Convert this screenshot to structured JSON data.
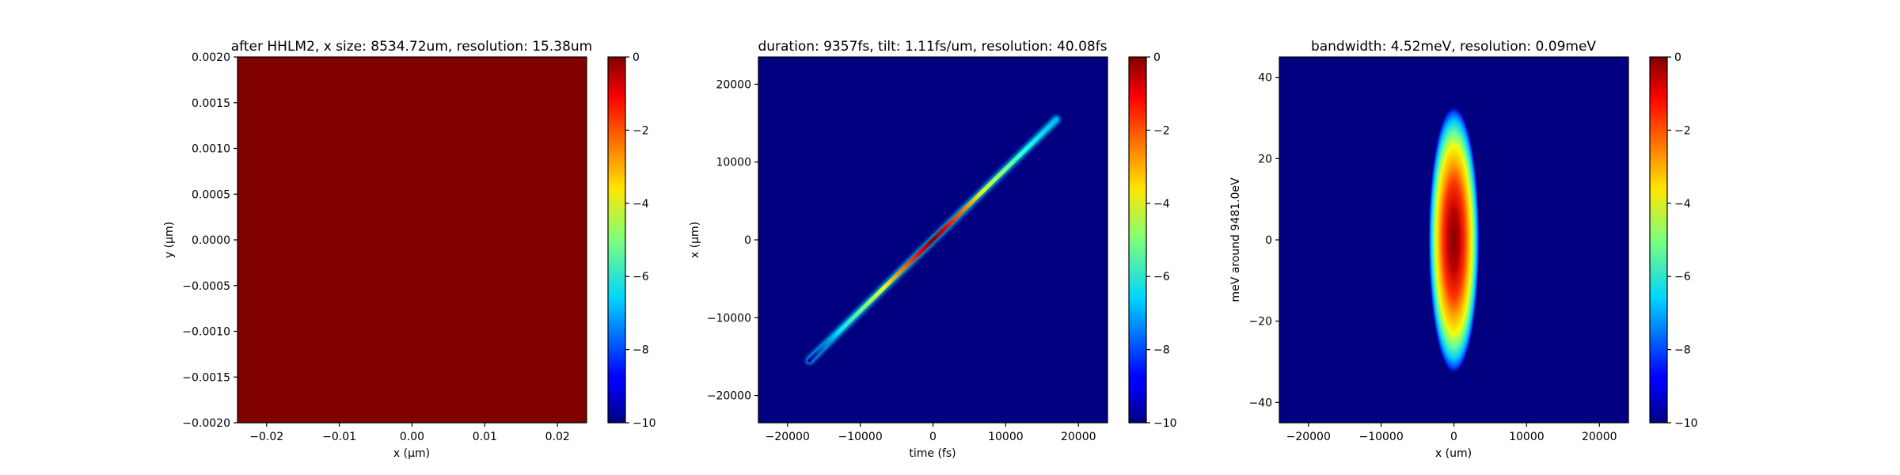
{
  "chart_data": [
    {
      "type": "heatmap",
      "title": "after HHLM2, x size: 8534.72um, resolution: 15.38um",
      "xlabel": "x ($\\mu$m)",
      "ylabel": "y ($\\mu$m)",
      "xlim": [
        -0.024,
        0.024
      ],
      "ylim": [
        -0.002,
        0.002
      ],
      "xticks": [
        -0.02,
        -0.01,
        0.0,
        0.01,
        0.02
      ],
      "xtick_labels": [
        "−0.02",
        "−0.01",
        "0.00",
        "0.01",
        "0.02"
      ],
      "yticks": [
        -0.002,
        -0.0015,
        -0.001,
        -0.0005,
        0.0,
        0.0005,
        0.001,
        0.0015,
        0.002
      ],
      "ytick_labels": [
        "−0.0020",
        "−0.0015",
        "−0.0010",
        "−0.0005",
        "0.0000",
        "0.0005",
        "0.0010",
        "0.0015",
        "0.0020"
      ],
      "field": {
        "kind": "uniform",
        "value": 0
      },
      "colormap": "jet",
      "colorbar": {
        "range": [
          -10,
          0
        ],
        "ticks": [
          0,
          -2,
          -4,
          -6,
          -8,
          -10
        ],
        "tick_labels": [
          "0",
          "−2",
          "−4",
          "−6",
          "−8",
          "−10"
        ]
      }
    },
    {
      "type": "heatmap",
      "title": "duration: 9357fs, tilt: 1.11fs/um, resolution: 40.08fs",
      "xlabel": "time (fs)",
      "ylabel": "x ($\\mu$m)",
      "xlim": [
        -24000,
        24000
      ],
      "ylim": [
        -23500,
        23500
      ],
      "xticks": [
        -20000,
        -10000,
        0,
        10000,
        20000
      ],
      "xtick_labels": [
        "−20000",
        "−10000",
        "0",
        "10000",
        "20000"
      ],
      "yticks": [
        -20000,
        -10000,
        0,
        10000,
        20000
      ],
      "ytick_labels": [
        "−20000",
        "−10000",
        "0",
        "10000",
        "20000"
      ],
      "field": {
        "kind": "tilted_line",
        "start": [
          -17000,
          -15500
        ],
        "end": [
          17000,
          15500
        ],
        "peak_value": 0,
        "edge_value": -6
      },
      "colormap": "jet",
      "colorbar": {
        "range": [
          -10,
          0
        ],
        "ticks": [
          0,
          -2,
          -4,
          -6,
          -8,
          -10
        ],
        "tick_labels": [
          "0",
          "−2",
          "−4",
          "−6",
          "−8",
          "−10"
        ]
      }
    },
    {
      "type": "heatmap",
      "title": "bandwidth: 4.52meV, resolution: 0.09meV",
      "xlabel": "x (um)",
      "ylabel": "meV around 9481.0eV",
      "xlim": [
        -24000,
        24000
      ],
      "ylim": [
        -45,
        45
      ],
      "xticks": [
        -20000,
        -10000,
        0,
        10000,
        20000
      ],
      "xtick_labels": [
        "−20000",
        "−10000",
        "0",
        "10000",
        "20000"
      ],
      "yticks": [
        -40,
        -20,
        0,
        20,
        40
      ],
      "ytick_labels": [
        "−40",
        "−20",
        "0",
        "20",
        "40"
      ],
      "field": {
        "kind": "ellipse_blob",
        "center": [
          0,
          0
        ],
        "semi_axes": [
          3500,
          33
        ],
        "peak_value": 0
      },
      "colormap": "jet",
      "colorbar": {
        "range": [
          -10,
          0
        ],
        "ticks": [
          0,
          -2,
          -4,
          -6,
          -8,
          -10
        ],
        "tick_labels": [
          "0",
          "−2",
          "−4",
          "−6",
          "−8",
          "−10"
        ]
      }
    }
  ]
}
